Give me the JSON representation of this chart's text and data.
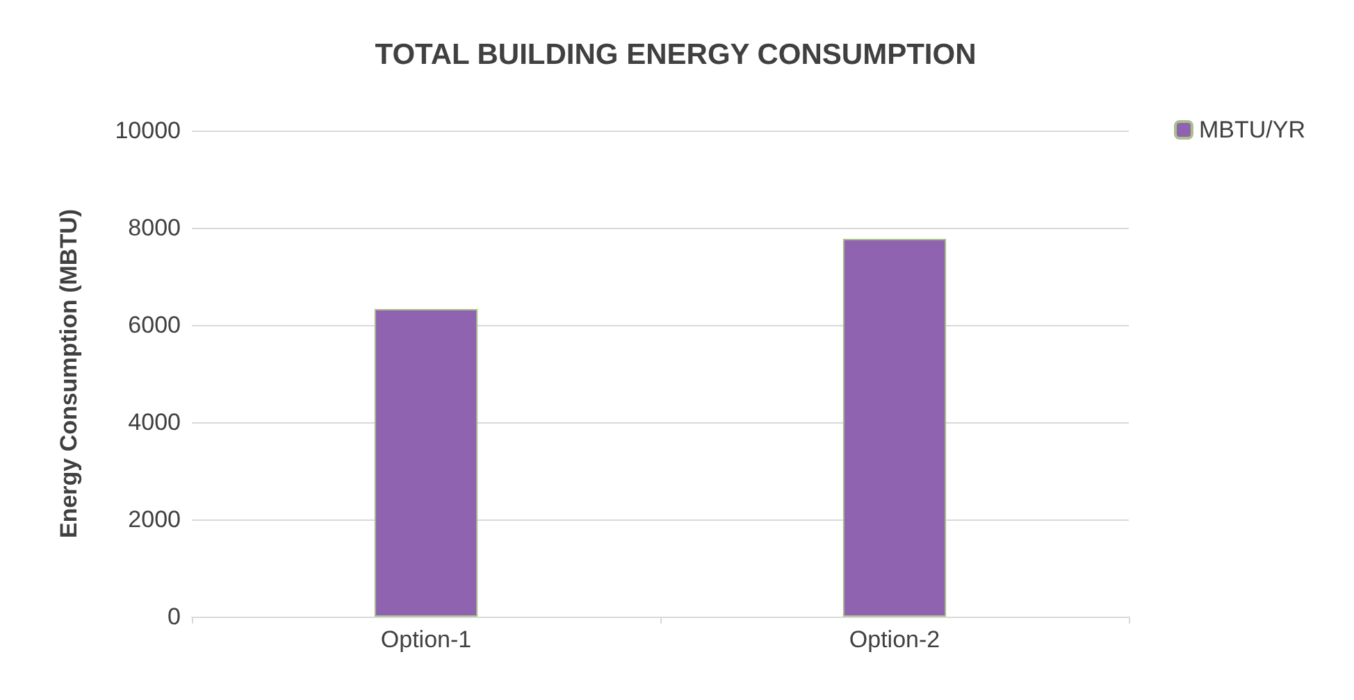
{
  "chart_data": {
    "type": "bar",
    "title": "TOTAL BUILDING ENERGY CONSUMPTION",
    "ylabel": "Energy Consumption (MBTU)",
    "categories": [
      "Option-1",
      "Option-2"
    ],
    "series": [
      {
        "name": "MBTU/YR",
        "color": "#8f63b0",
        "values": [
          6330,
          7770
        ]
      }
    ],
    "ylim": [
      0,
      10000
    ],
    "yticks": [
      0,
      2000,
      4000,
      6000,
      8000,
      10000
    ],
    "grid": "y",
    "legend": "top right"
  }
}
